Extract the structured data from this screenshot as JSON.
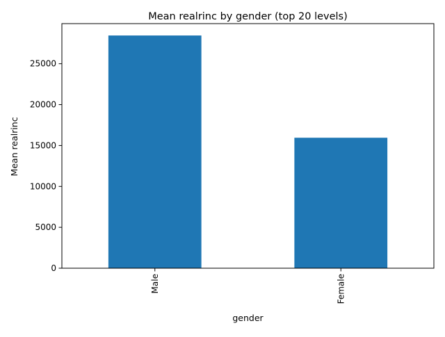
{
  "chart_data": {
    "type": "bar",
    "title": "Mean realrinc by gender (top 20 levels)",
    "xlabel": "gender",
    "ylabel": "Mean realrinc",
    "categories": [
      "Male",
      "Female"
    ],
    "values": [
      28450,
      15950
    ],
    "ylim": [
      0,
      29900
    ],
    "yticks": [
      0,
      5000,
      10000,
      15000,
      20000,
      25000
    ],
    "bar_color": "#1f77b4",
    "grid": false,
    "legend": "none"
  }
}
